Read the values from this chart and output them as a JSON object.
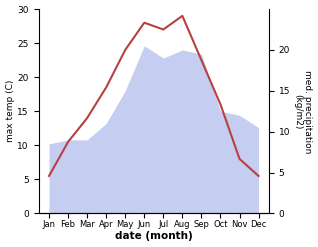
{
  "months": [
    "Jan",
    "Feb",
    "Mar",
    "Apr",
    "May",
    "Jun",
    "Jul",
    "Aug",
    "Sep",
    "Oct",
    "Nov",
    "Dec"
  ],
  "temperature": [
    5.5,
    10.5,
    14.0,
    18.5,
    24.0,
    28.0,
    27.0,
    29.0,
    22.5,
    16.0,
    8.0,
    5.5
  ],
  "precipitation": [
    8.5,
    9.0,
    9.0,
    11.0,
    15.0,
    20.5,
    19.0,
    20.0,
    19.5,
    12.5,
    12.0,
    10.5
  ],
  "temp_color": "#b94040",
  "precip_color_fill": "#c5cdf0",
  "ylabel_left": "max temp (C)",
  "ylabel_right": "med. precipitation\n(kg/m2)",
  "xlabel": "date (month)",
  "ylim_left": [
    0,
    30
  ],
  "ylim_right": [
    0,
    25
  ],
  "yticks_left": [
    0,
    5,
    10,
    15,
    20,
    25,
    30
  ],
  "yticks_right": [
    0,
    5,
    10,
    15,
    20
  ],
  "figsize": [
    3.18,
    2.47
  ],
  "dpi": 100
}
